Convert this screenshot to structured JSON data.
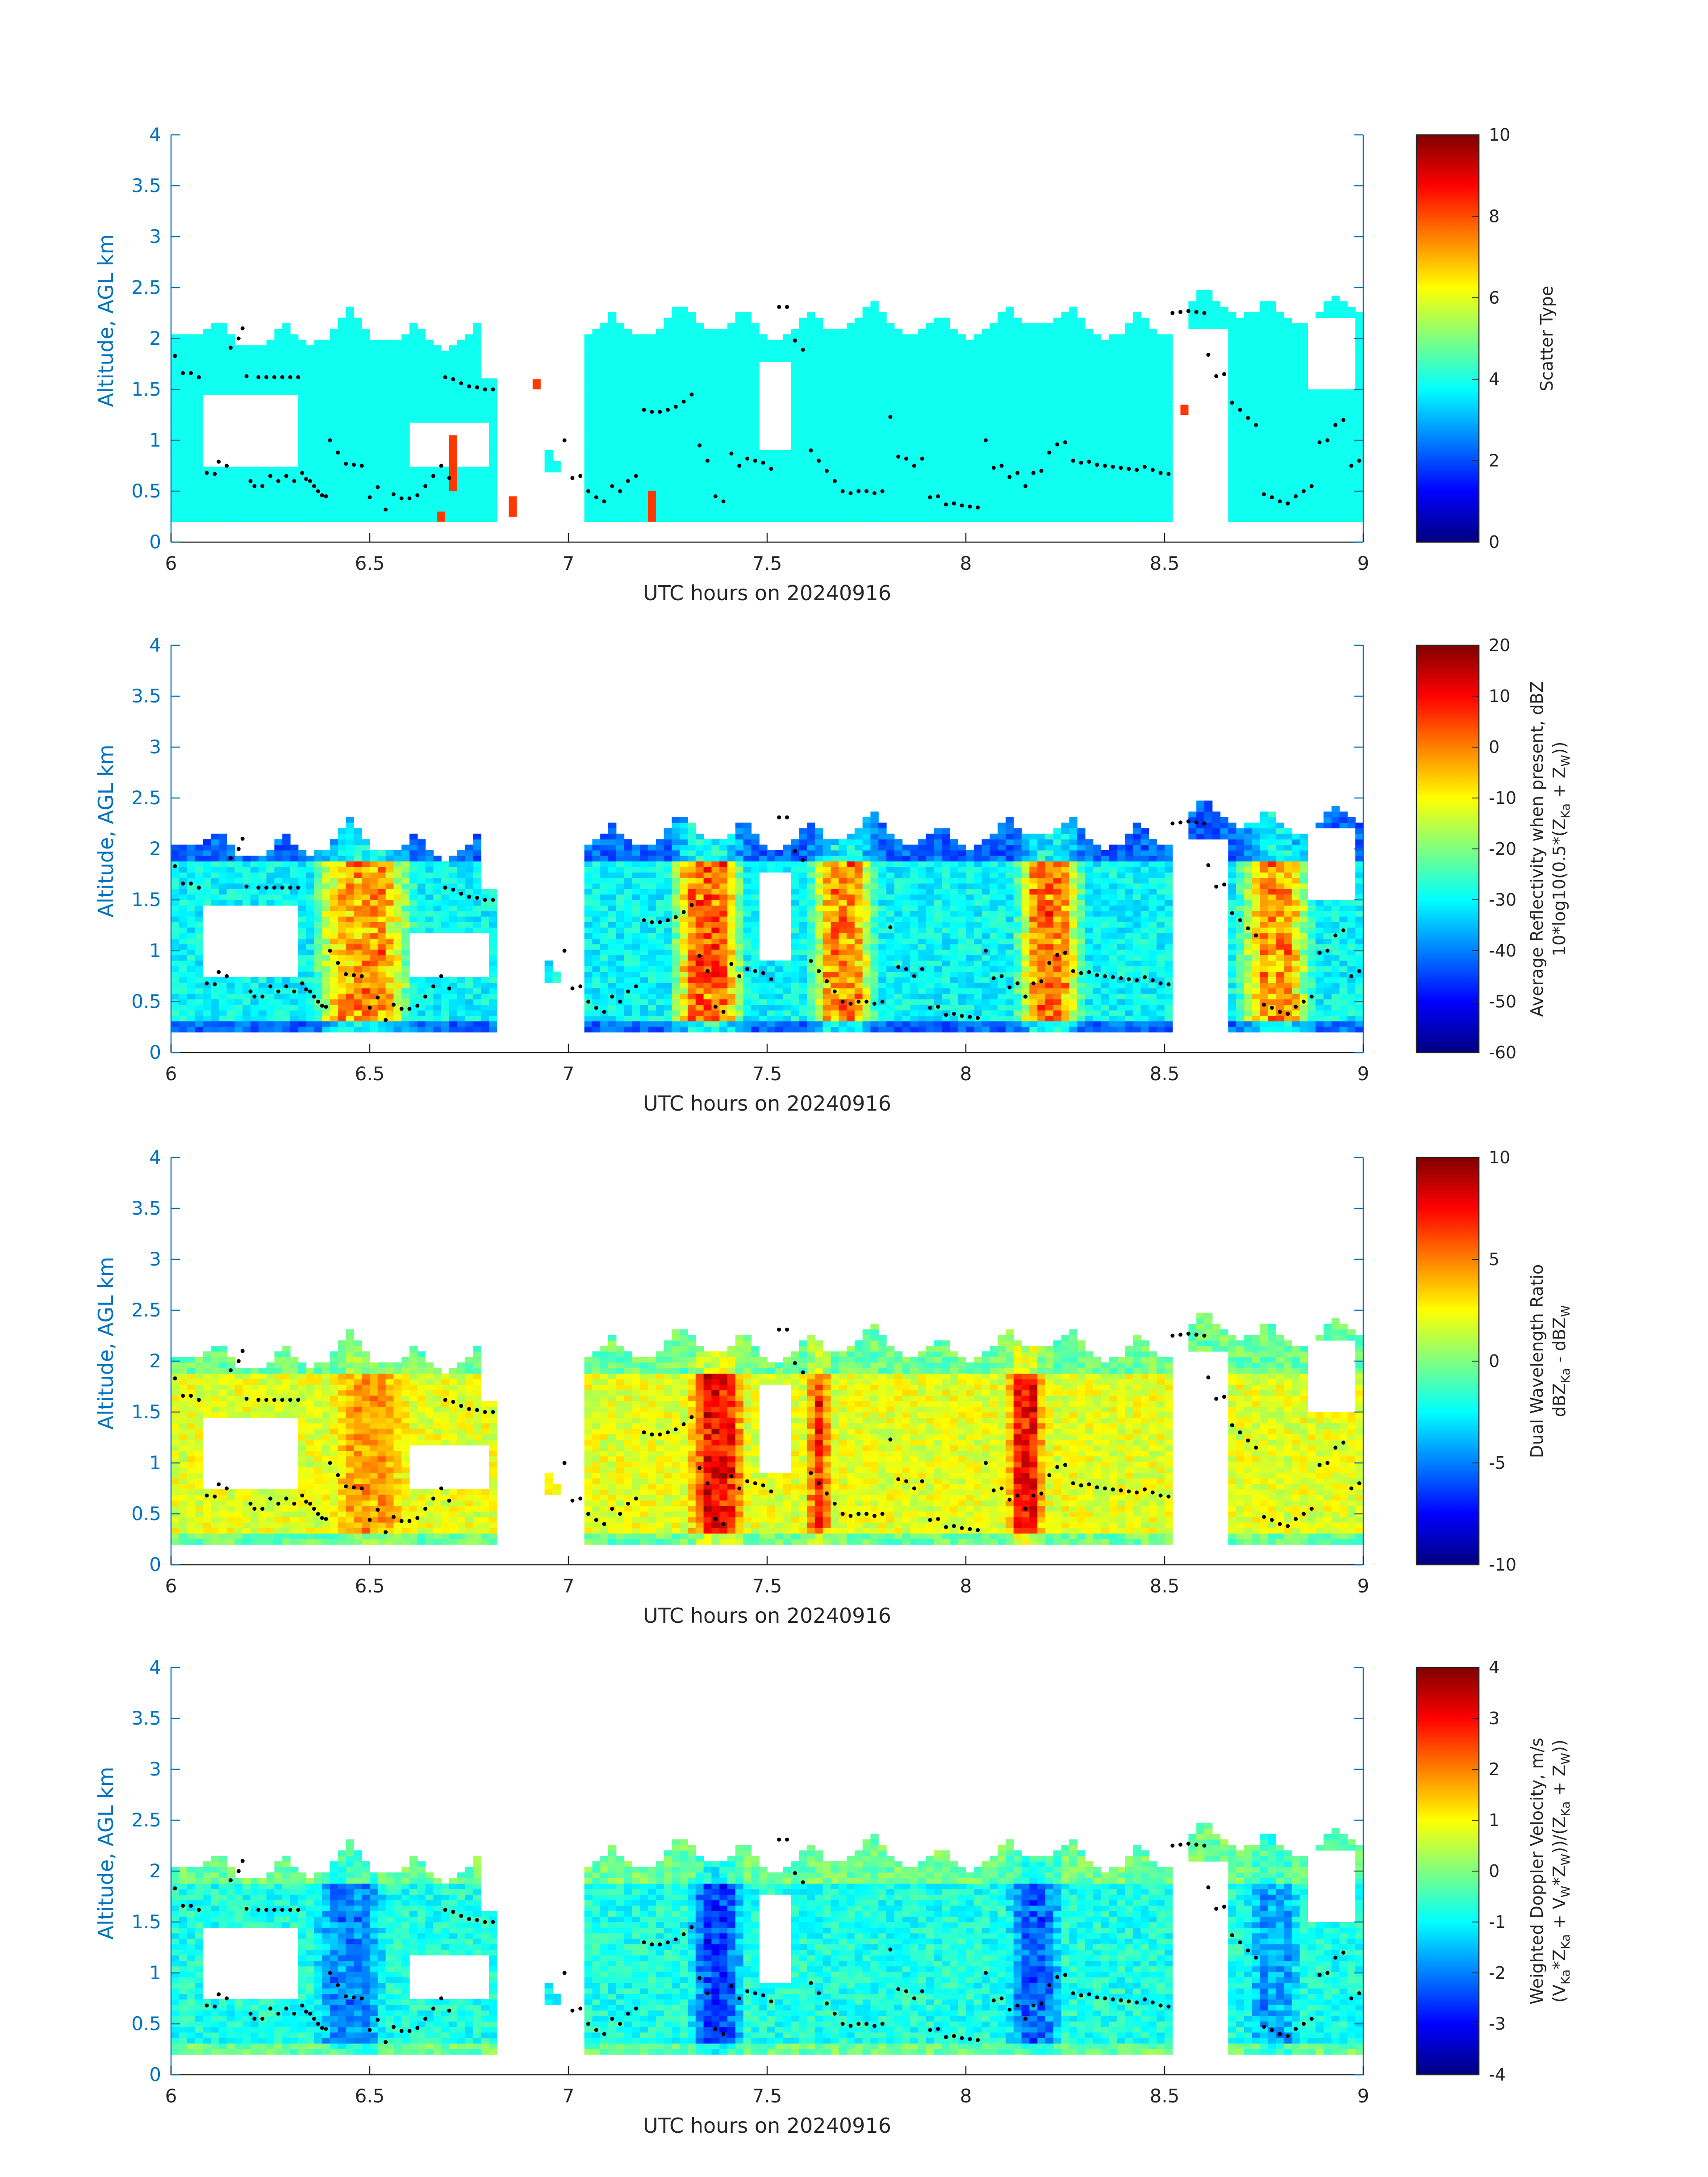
{
  "chart_data": [
    {
      "type": "heatmap",
      "xlabel": "UTC hours on 20240916",
      "ylabel": "Altitude, AGL km",
      "xlim": [
        6,
        9
      ],
      "ylim": [
        0,
        4
      ],
      "xticks": [
        "6",
        "6.5",
        "7",
        "7.5",
        "8",
        "8.5",
        "9"
      ],
      "yticks": [
        "0",
        "0.5",
        "1",
        "1.5",
        "2",
        "2.5",
        "3",
        "3.5",
        "4"
      ],
      "colorbar": {
        "label_lines": [
          "Scatter Type"
        ],
        "clim": [
          0,
          10
        ],
        "ticks": [
          "0",
          "2",
          "4",
          "6",
          "8",
          "10"
        ]
      },
      "field": "scatter-type",
      "colormap": "jet",
      "dominant_value": 3.9,
      "cloud_segments": [
        {
          "x": [
            6.0,
            6.82
          ],
          "base_km": 0.2,
          "top_km": 2.3
        },
        {
          "x": [
            6.95,
            7.0
          ],
          "base_km": 0.7,
          "top_km": 1.0
        },
        {
          "x": [
            7.05,
            8.52
          ],
          "base_km": 0.2,
          "top_km": 2.4
        },
        {
          "x": [
            8.57,
            9.0
          ],
          "base_km": 0.2,
          "top_km": 2.55
        }
      ],
      "outliers": [
        {
          "x": 6.71,
          "y0_km": 0.5,
          "y1_km": 1.05,
          "value": 8.2
        },
        {
          "x": 6.68,
          "y0_km": 0.2,
          "y1_km": 0.3,
          "value": 8.2
        },
        {
          "x": 6.86,
          "y0_km": 0.25,
          "y1_km": 0.45,
          "value": 8.2
        },
        {
          "x": 6.92,
          "y0_km": 1.5,
          "y1_km": 1.6,
          "value": 8.2
        },
        {
          "x": 7.21,
          "y0_km": 0.2,
          "y1_km": 0.5,
          "value": 8.2
        },
        {
          "x": 8.55,
          "y0_km": 1.25,
          "y1_km": 1.35,
          "value": 8.2
        }
      ]
    },
    {
      "type": "heatmap",
      "xlabel": "UTC hours on 20240916",
      "ylabel": "Altitude, AGL km",
      "xlim": [
        6,
        9
      ],
      "ylim": [
        0,
        4
      ],
      "xticks": [
        "6",
        "6.5",
        "7",
        "7.5",
        "8",
        "8.5",
        "9"
      ],
      "yticks": [
        "0",
        "0.5",
        "1",
        "1.5",
        "2",
        "2.5",
        "3",
        "3.5",
        "4"
      ],
      "colorbar": {
        "label_lines": [
          "Average Reflectivity when present, dBZ",
          "10*log10(0.5*(Z",
          "Ka",
          " + Z",
          "W",
          "))"
        ],
        "clim": [
          -60,
          20
        ],
        "ticks": [
          "-60",
          "-50",
          "-40",
          "-30",
          "-20",
          "-10",
          "0",
          "10",
          "20"
        ]
      },
      "field": "reflectivity",
      "colormap": "jet",
      "cores": [
        {
          "x": [
            6.35,
            6.62
          ],
          "value": 5
        },
        {
          "x": [
            7.25,
            7.45
          ],
          "value": 10
        },
        {
          "x": [
            7.6,
            7.78
          ],
          "value": 6
        },
        {
          "x": [
            8.12,
            8.3
          ],
          "value": 8
        },
        {
          "x": [
            8.68,
            8.88
          ],
          "value": 4
        }
      ],
      "background_value": -30,
      "edge_value": -50
    },
    {
      "type": "heatmap",
      "xlabel": "UTC hours on 20240916",
      "ylabel": "Altitude, AGL km",
      "xlim": [
        6,
        9
      ],
      "ylim": [
        0,
        4
      ],
      "xticks": [
        "6",
        "6.5",
        "7",
        "7.5",
        "8",
        "8.5",
        "9"
      ],
      "yticks": [
        "0",
        "0.5",
        "1",
        "1.5",
        "2",
        "2.5",
        "3",
        "3.5",
        "4"
      ],
      "colorbar": {
        "label_lines": [
          "Dual Wavelength Ratio",
          "dBZ",
          "Ka",
          " - dBZ",
          "W"
        ],
        "clim": [
          -10,
          10
        ],
        "ticks": [
          "-10",
          "-5",
          "0",
          "5",
          "10"
        ]
      },
      "field": "dual-wavelength-ratio",
      "colormap": "jet",
      "cores": [
        {
          "x": [
            7.3,
            7.45
          ],
          "value": 9
        },
        {
          "x": [
            7.6,
            7.66
          ],
          "value": 8
        },
        {
          "x": [
            8.1,
            8.2
          ],
          "value": 9
        },
        {
          "x": [
            6.4,
            6.6
          ],
          "value": 5
        }
      ],
      "background_value": 2,
      "edge_value": -2
    },
    {
      "type": "heatmap",
      "xlabel": "UTC hours on 20240916",
      "ylabel": "Altitude, AGL km",
      "xlim": [
        6,
        9
      ],
      "ylim": [
        0,
        4
      ],
      "xticks": [
        "6",
        "6.5",
        "7",
        "7.5",
        "8",
        "8.5",
        "9"
      ],
      "yticks": [
        "0",
        "0.5",
        "1",
        "1.5",
        "2",
        "2.5",
        "3",
        "3.5",
        "4"
      ],
      "colorbar": {
        "label_lines": [
          "Weighted Doppler Velocity, m/s",
          "(V",
          "Ka",
          "*Z",
          "Ka",
          " + V",
          "W",
          "*Z",
          "W",
          "))/(Z",
          "Ka",
          " + Z",
          "W",
          "))"
        ],
        "clim": [
          -4,
          4
        ],
        "ticks": [
          "-4",
          "-3",
          "-2",
          "-1",
          "0",
          "1",
          "2",
          "3",
          "4"
        ]
      },
      "field": "doppler-velocity",
      "colormap": "jet",
      "cores": [
        {
          "x": [
            7.3,
            7.45
          ],
          "value": -3
        },
        {
          "x": [
            8.1,
            8.25
          ],
          "value": -2.6
        },
        {
          "x": [
            6.35,
            6.55
          ],
          "value": -2.2
        },
        {
          "x": [
            8.7,
            8.85
          ],
          "value": -2
        }
      ],
      "background_value": -0.8,
      "edge_value": 0.3
    }
  ],
  "black_dots": [
    [
      6.01,
      1.83
    ],
    [
      6.03,
      1.66
    ],
    [
      6.05,
      1.66
    ],
    [
      6.07,
      1.62
    ],
    [
      6.09,
      0.68
    ],
    [
      6.11,
      0.67
    ],
    [
      6.12,
      0.79
    ],
    [
      6.14,
      0.75
    ],
    [
      6.15,
      1.91
    ],
    [
      6.17,
      2.0
    ],
    [
      6.18,
      2.1
    ],
    [
      6.19,
      1.63
    ],
    [
      6.2,
      0.6
    ],
    [
      6.21,
      0.55
    ],
    [
      6.22,
      1.62
    ],
    [
      6.23,
      0.55
    ],
    [
      6.24,
      1.62
    ],
    [
      6.25,
      0.65
    ],
    [
      6.26,
      1.62
    ],
    [
      6.27,
      0.6
    ],
    [
      6.28,
      1.62
    ],
    [
      6.29,
      0.65
    ],
    [
      6.3,
      1.62
    ],
    [
      6.31,
      0.6
    ],
    [
      6.32,
      1.62
    ],
    [
      6.33,
      0.68
    ],
    [
      6.34,
      0.62
    ],
    [
      6.35,
      0.6
    ],
    [
      6.36,
      0.55
    ],
    [
      6.37,
      0.5
    ],
    [
      6.38,
      0.46
    ],
    [
      6.39,
      0.45
    ],
    [
      6.4,
      1.0
    ],
    [
      6.42,
      0.88
    ],
    [
      6.44,
      0.77
    ],
    [
      6.46,
      0.76
    ],
    [
      6.48,
      0.75
    ],
    [
      6.5,
      0.44
    ],
    [
      6.52,
      0.54
    ],
    [
      6.54,
      0.32
    ],
    [
      6.56,
      0.47
    ],
    [
      6.58,
      0.43
    ],
    [
      6.6,
      0.43
    ],
    [
      6.62,
      0.46
    ],
    [
      6.64,
      0.55
    ],
    [
      6.66,
      0.65
    ],
    [
      6.68,
      0.75
    ],
    [
      6.7,
      0.63
    ],
    [
      6.69,
      1.62
    ],
    [
      6.71,
      1.6
    ],
    [
      6.73,
      1.56
    ],
    [
      6.75,
      1.53
    ],
    [
      6.77,
      1.52
    ],
    [
      6.79,
      1.5
    ],
    [
      6.81,
      1.5
    ],
    [
      6.99,
      1.0
    ],
    [
      7.01,
      0.63
    ],
    [
      7.03,
      0.65
    ],
    [
      7.05,
      0.5
    ],
    [
      7.07,
      0.44
    ],
    [
      7.09,
      0.4
    ],
    [
      7.11,
      0.55
    ],
    [
      7.13,
      0.5
    ],
    [
      7.15,
      0.6
    ],
    [
      7.17,
      0.65
    ],
    [
      7.19,
      1.3
    ],
    [
      7.21,
      1.28
    ],
    [
      7.23,
      1.28
    ],
    [
      7.25,
      1.3
    ],
    [
      7.27,
      1.33
    ],
    [
      7.29,
      1.38
    ],
    [
      7.31,
      1.45
    ],
    [
      7.33,
      0.95
    ],
    [
      7.35,
      0.8
    ],
    [
      7.37,
      0.45
    ],
    [
      7.39,
      0.4
    ],
    [
      7.41,
      0.87
    ],
    [
      7.43,
      0.75
    ],
    [
      7.45,
      0.82
    ],
    [
      7.47,
      0.8
    ],
    [
      7.49,
      0.78
    ],
    [
      7.51,
      0.72
    ],
    [
      7.53,
      2.31
    ],
    [
      7.55,
      2.31
    ],
    [
      7.57,
      1.98
    ],
    [
      7.59,
      1.89
    ],
    [
      7.61,
      0.9
    ],
    [
      7.63,
      0.8
    ],
    [
      7.65,
      0.7
    ],
    [
      7.67,
      0.6
    ],
    [
      7.69,
      0.5
    ],
    [
      7.71,
      0.48
    ],
    [
      7.73,
      0.5
    ],
    [
      7.75,
      0.5
    ],
    [
      7.77,
      0.48
    ],
    [
      7.79,
      0.5
    ],
    [
      7.81,
      1.23
    ],
    [
      7.83,
      0.84
    ],
    [
      7.85,
      0.82
    ],
    [
      7.87,
      0.75
    ],
    [
      7.89,
      0.82
    ],
    [
      7.91,
      0.44
    ],
    [
      7.93,
      0.45
    ],
    [
      7.95,
      0.37
    ],
    [
      7.97,
      0.38
    ],
    [
      7.99,
      0.36
    ],
    [
      8.01,
      0.35
    ],
    [
      8.03,
      0.34
    ],
    [
      8.05,
      1.0
    ],
    [
      8.07,
      0.73
    ],
    [
      8.09,
      0.75
    ],
    [
      8.11,
      0.64
    ],
    [
      8.13,
      0.68
    ],
    [
      8.15,
      0.55
    ],
    [
      8.17,
      0.68
    ],
    [
      8.19,
      0.7
    ],
    [
      8.21,
      0.88
    ],
    [
      8.23,
      0.96
    ],
    [
      8.25,
      0.98
    ],
    [
      8.27,
      0.8
    ],
    [
      8.29,
      0.78
    ],
    [
      8.31,
      0.79
    ],
    [
      8.33,
      0.76
    ],
    [
      8.35,
      0.75
    ],
    [
      8.37,
      0.74
    ],
    [
      8.39,
      0.73
    ],
    [
      8.41,
      0.72
    ],
    [
      8.43,
      0.71
    ],
    [
      8.45,
      0.74
    ],
    [
      8.47,
      0.71
    ],
    [
      8.49,
      0.68
    ],
    [
      8.51,
      0.67
    ],
    [
      8.52,
      2.25
    ],
    [
      8.54,
      2.26
    ],
    [
      8.56,
      2.27
    ],
    [
      8.58,
      2.26
    ],
    [
      8.6,
      2.25
    ],
    [
      8.61,
      1.84
    ],
    [
      8.63,
      1.63
    ],
    [
      8.65,
      1.65
    ],
    [
      8.67,
      1.37
    ],
    [
      8.69,
      1.3
    ],
    [
      8.71,
      1.22
    ],
    [
      8.73,
      1.15
    ],
    [
      8.75,
      0.47
    ],
    [
      8.77,
      0.44
    ],
    [
      8.79,
      0.4
    ],
    [
      8.81,
      0.38
    ],
    [
      8.83,
      0.45
    ],
    [
      8.85,
      0.5
    ],
    [
      8.87,
      0.55
    ],
    [
      8.89,
      0.98
    ],
    [
      8.91,
      1.0
    ],
    [
      8.93,
      1.15
    ],
    [
      8.95,
      1.2
    ],
    [
      8.97,
      0.75
    ],
    [
      8.99,
      0.8
    ]
  ]
}
